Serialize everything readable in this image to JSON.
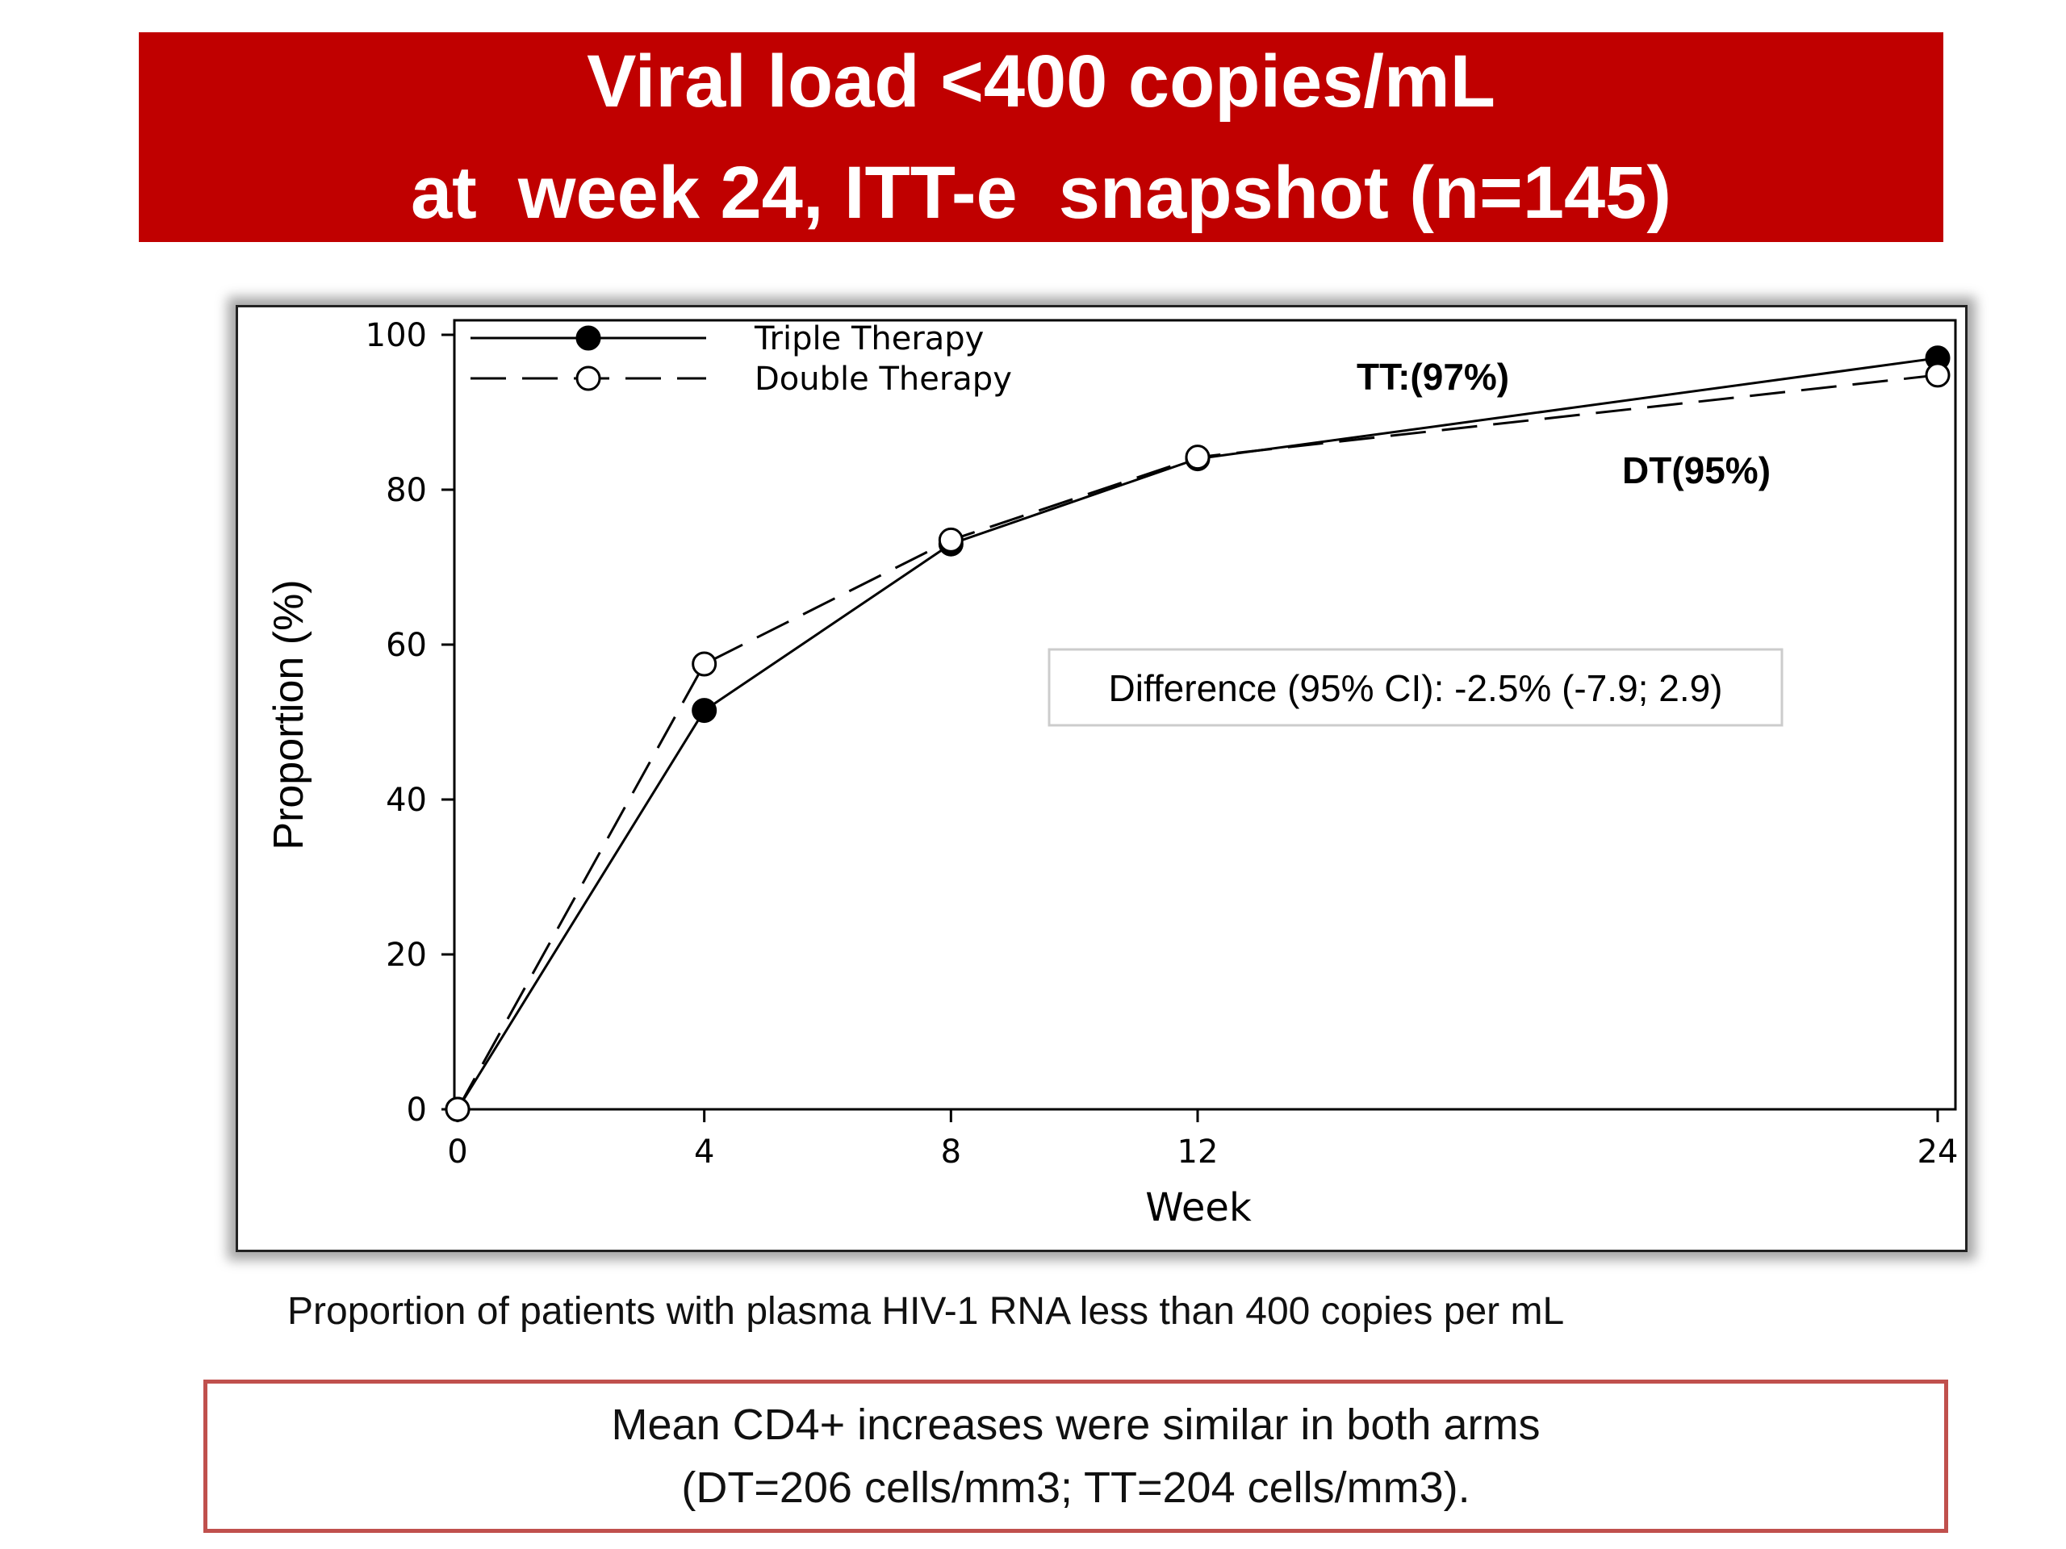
{
  "title": {
    "line1": "Viral load <400 copies/mL",
    "line2": "at  week 24, ITT-e  snapshot (n=145)"
  },
  "colors": {
    "banner": "#c00000",
    "note_border": "#c0504d",
    "series": "#000000"
  },
  "chart_data": {
    "type": "line",
    "xlabel": "Week",
    "ylabel": "Proportion (%)",
    "x_ticks": [
      0,
      4,
      8,
      12,
      24
    ],
    "y_ticks": [
      0,
      20,
      40,
      60,
      80,
      100
    ],
    "xlim": [
      0,
      24
    ],
    "ylim": [
      0,
      100
    ],
    "grid": false,
    "legend_position": "top-left",
    "series": [
      {
        "name": "Triple Therapy",
        "style": "solid",
        "marker": "filled-circle",
        "x": [
          0,
          4,
          8,
          12,
          24
        ],
        "y": [
          0,
          51.5,
          73,
          84,
          97
        ]
      },
      {
        "name": "Double Therapy",
        "style": "dashed",
        "marker": "open-circle",
        "x": [
          0,
          4,
          8,
          12,
          24
        ],
        "y": [
          0,
          57.5,
          73.5,
          84.2,
          94.8
        ]
      }
    ],
    "annotations": {
      "tt_label": "TT:(97%)",
      "dt_label": "DT(95%)",
      "difference": "Difference (95% CI): -2.5% (-7.9; 2.9)"
    }
  },
  "caption": "Proportion of patients with plasma HIV-1 RNA less than 400 copies per mL",
  "note": {
    "line1": "Mean CD4+ increases were similar in both arms",
    "line2": "(DT=206 cells/mm3; TT=204 cells/mm3)."
  }
}
